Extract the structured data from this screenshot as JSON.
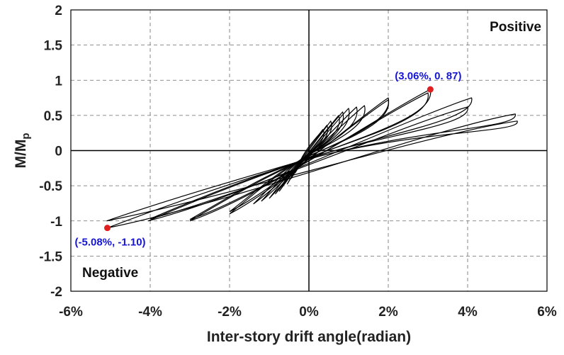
{
  "chart_data": {
    "type": "line",
    "xlabel": "Inter-story drift angle(radian)",
    "ylabel": "M/M",
    "ylabel_sub": "p",
    "xlim": [
      -6,
      6
    ],
    "ylim": [
      -2,
      2
    ],
    "x_ticks": [
      "-6%",
      "-4%",
      "-2%",
      "0%",
      "2%",
      "4%",
      "6%"
    ],
    "y_ticks": [
      "2",
      "1.5",
      "1",
      "0.5",
      "0",
      "-0.5",
      "-1",
      "-1.5",
      "-2"
    ],
    "grid": true,
    "quadrant_labels": {
      "positive": "Positive",
      "negative": "Negative"
    },
    "annotations": [
      {
        "text": "(3.06%, 0. 87)",
        "x": 3.06,
        "y": 0.87,
        "color": "#e02020"
      },
      {
        "text": "(-5.08%, -1.10)",
        "x": -5.08,
        "y": -1.1,
        "color": "#e02020"
      }
    ],
    "hysteresis_cycles": [
      {
        "peak_pos": [
          0.35,
          0.3
        ],
        "peak_neg": [
          -0.35,
          -0.32
        ],
        "res_pos": 0.04,
        "res_neg": -0.04
      },
      {
        "peak_pos": [
          0.45,
          0.36
        ],
        "peak_neg": [
          -0.45,
          -0.4
        ],
        "res_pos": 0.05,
        "res_neg": -0.05
      },
      {
        "peak_pos": [
          0.55,
          0.42
        ],
        "peak_neg": [
          -0.55,
          -0.48
        ],
        "res_pos": 0.06,
        "res_neg": -0.06
      },
      {
        "peak_pos": [
          0.75,
          0.5
        ],
        "peak_neg": [
          -0.75,
          -0.58
        ],
        "res_pos": 0.07,
        "res_neg": -0.08
      },
      {
        "peak_pos": [
          0.85,
          0.55
        ],
        "peak_neg": [
          -0.85,
          -0.62
        ],
        "res_pos": 0.08,
        "res_neg": -0.09
      },
      {
        "peak_pos": [
          1.0,
          0.6
        ],
        "peak_neg": [
          -1.0,
          -0.68
        ],
        "res_pos": 0.1,
        "res_neg": -0.1
      },
      {
        "peak_pos": [
          1.2,
          0.62
        ],
        "peak_neg": [
          -1.2,
          -0.72
        ],
        "res_pos": 0.12,
        "res_neg": -0.12
      },
      {
        "peak_pos": [
          1.4,
          0.64
        ],
        "peak_neg": [
          -1.4,
          -0.76
        ],
        "res_pos": 0.14,
        "res_neg": -0.14
      },
      {
        "peak_pos": [
          2.0,
          0.75
        ],
        "peak_neg": [
          -2.0,
          -0.9
        ],
        "res_pos": 0.18,
        "res_neg": -0.22
      },
      {
        "peak_pos": [
          2.0,
          0.72
        ],
        "peak_neg": [
          -2.0,
          -0.87
        ],
        "res_pos": 0.16,
        "res_neg": -0.2
      },
      {
        "peak_pos": [
          3.06,
          0.87
        ],
        "peak_neg": [
          -3.0,
          -1.0
        ],
        "res_pos": 0.24,
        "res_neg": -0.3
      },
      {
        "peak_pos": [
          3.0,
          0.82
        ],
        "peak_neg": [
          -3.0,
          -0.98
        ],
        "res_pos": 0.22,
        "res_neg": -0.28
      },
      {
        "peak_pos": [
          4.1,
          0.75
        ],
        "peak_neg": [
          -4.05,
          -1.0
        ],
        "res_pos": 0.26,
        "res_neg": -0.34
      },
      {
        "peak_pos": [
          4.0,
          0.62
        ],
        "peak_neg": [
          -4.0,
          -0.97
        ],
        "res_pos": 0.24,
        "res_neg": -0.32
      },
      {
        "peak_pos": [
          5.2,
          0.52
        ],
        "peak_neg": [
          -5.08,
          -1.1
        ],
        "res_pos": 0.3,
        "res_neg": -0.38
      },
      {
        "peak_pos": [
          5.25,
          0.42
        ],
        "peak_neg": [
          -5.1,
          -1.0
        ],
        "res_pos": 0.28,
        "res_neg": -0.36
      }
    ]
  }
}
